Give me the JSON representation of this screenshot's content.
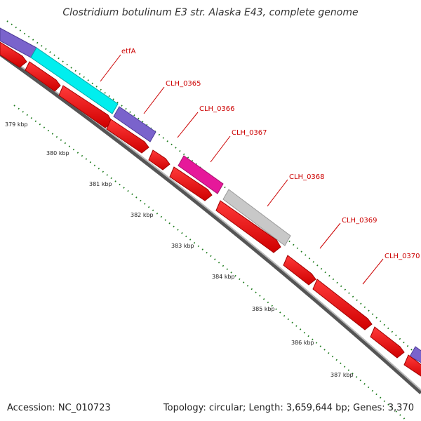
{
  "title": "Clostridium botulinum E3 str. Alaska E43, complete genome",
  "footer": {
    "accession": "Accession: NC_010723",
    "info": "Topology: circular; Length: 3,659,644 bp; Genes: 3,370"
  },
  "colors": {
    "cds": "#ff0000",
    "cds_dark": "#a00000",
    "label": "#cc0000",
    "backbone": "#7f7f7f",
    "tick": "#1a7a1a",
    "cyan": "#00eeee",
    "purple": "#7a63cc",
    "magenta": "#e6189a",
    "gray": "#c8c8c8"
  },
  "ticks": [
    "379 kbp",
    "380 kbp",
    "381 kbp",
    "382 kbp",
    "383 kbp",
    "384 kbp",
    "385 kbp",
    "386 kbp",
    "387 kbp"
  ],
  "gene_labels": [
    "etfA",
    "CLH_0365",
    "CLH_0366",
    "CLH_0367",
    "CLH_0368",
    "CLH_0369",
    "CLH_0370"
  ]
}
